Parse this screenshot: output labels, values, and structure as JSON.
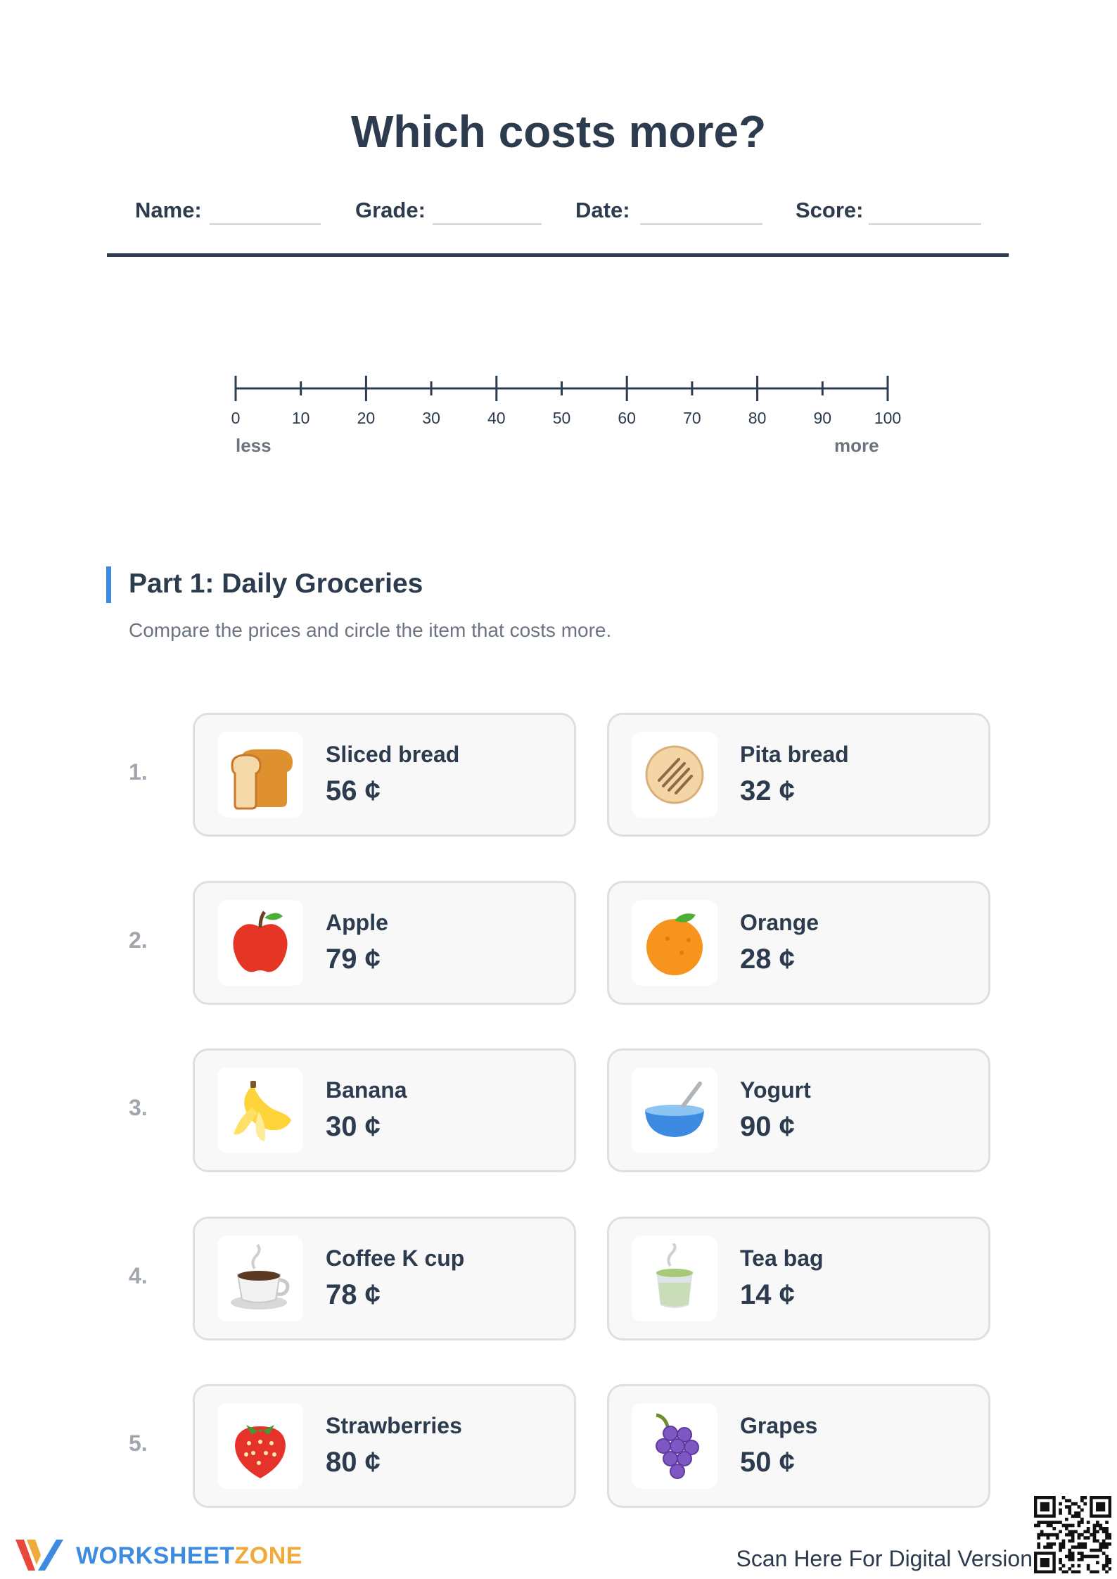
{
  "title": "Which costs more?",
  "info": {
    "name_label": "Name:",
    "grade_label": "Grade:",
    "date_label": "Date:",
    "score_label": "Score:"
  },
  "number_line": {
    "min": 0,
    "max": 100,
    "major_step": 20,
    "minor_step": 10,
    "ticks": [
      "0",
      "10",
      "20",
      "30",
      "40",
      "50",
      "60",
      "70",
      "80",
      "90",
      "100"
    ],
    "left_label": "less",
    "right_label": "more"
  },
  "part1": {
    "title": "Part 1: Daily Groceries",
    "instruction": "Compare the prices and circle the item that costs more.",
    "questions": [
      {
        "number": "1.",
        "left": {
          "name": "Sliced bread",
          "price": "56 ¢",
          "icon": "bread-icon"
        },
        "right": {
          "name": "Pita bread",
          "price": "32 ¢",
          "icon": "pita-icon"
        }
      },
      {
        "number": "2.",
        "left": {
          "name": "Apple",
          "price": "79 ¢",
          "icon": "apple-icon"
        },
        "right": {
          "name": "Orange",
          "price": "28 ¢",
          "icon": "orange-icon"
        }
      },
      {
        "number": "3.",
        "left": {
          "name": "Banana",
          "price": "30 ¢",
          "icon": "banana-icon"
        },
        "right": {
          "name": "Yogurt",
          "price": "90 ¢",
          "icon": "yogurt-bowl-icon"
        }
      },
      {
        "number": "4.",
        "left": {
          "name": "Coffee K cup",
          "price": "78 ¢",
          "icon": "coffee-cup-icon"
        },
        "right": {
          "name": "Tea bag",
          "price": "14 ¢",
          "icon": "tea-cup-icon"
        }
      },
      {
        "number": "5.",
        "left": {
          "name": "Strawberries",
          "price": "80 ¢",
          "icon": "strawberry-icon"
        },
        "right": {
          "name": "Grapes",
          "price": "50 ¢",
          "icon": "grapes-icon"
        }
      }
    ]
  },
  "footer": {
    "logo_part1": "WORKSHEET",
    "logo_part2": "ZONE",
    "scan_text": "Scan Here For Digital Version"
  },
  "colors": {
    "heading": "#2d3b4e",
    "accent_blue": "#3d8be0",
    "accent_orange": "#f0a93b",
    "card_border": "#dcdfe3"
  }
}
